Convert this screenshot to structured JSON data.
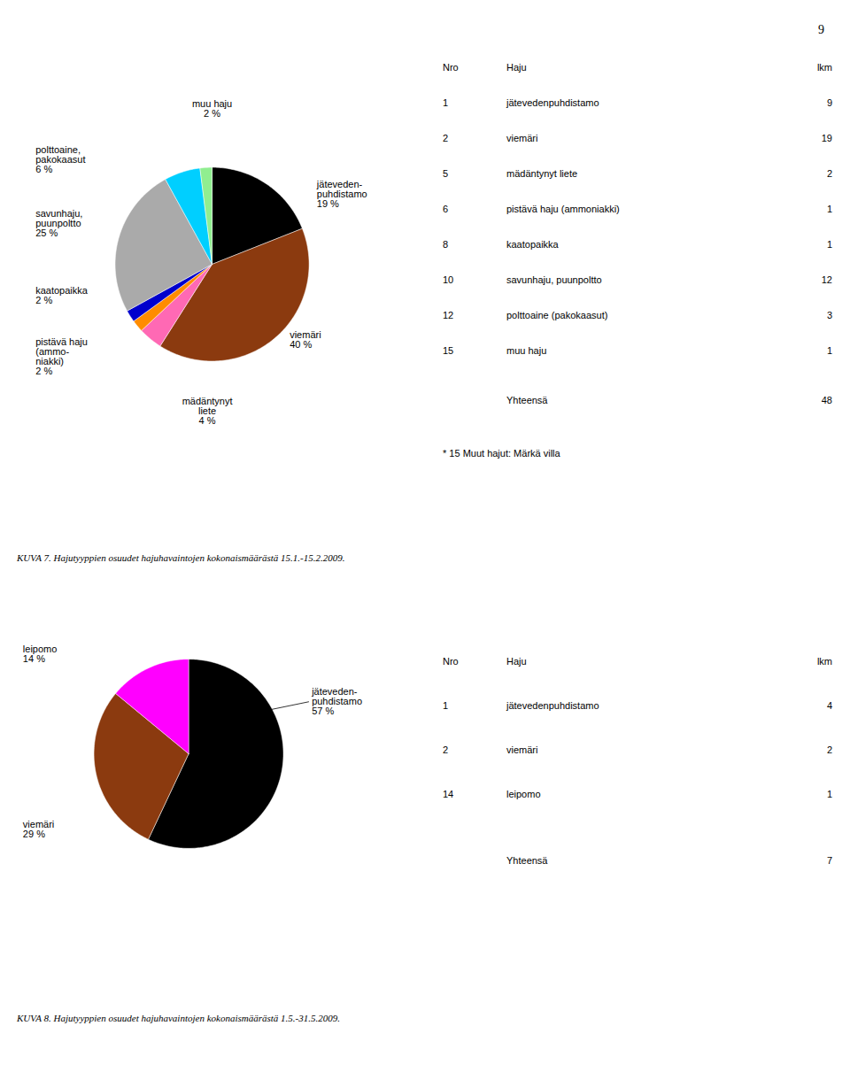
{
  "page_number": "9",
  "chart_data": [
    {
      "type": "pie",
      "title": "KUVA 7. Hajutyyppien osuudet hajuhavaintojen kokonaismäärästä 15.1.-15.2.2009.",
      "categories": [
        "jäteveden-\npuhdistamo",
        "viemäri",
        "mädäntynyt\nliete",
        "pistävä haju\n(ammo-\nniakki)",
        "kaatopaikka",
        "savunhaju,\npuunpoltto",
        "polttoaine,\npakokaasut",
        "muu haju"
      ],
      "values": [
        19,
        40,
        4,
        2,
        2,
        25,
        6,
        2
      ],
      "value_labels": [
        "19 %",
        "40 %",
        "4 %",
        "2 %",
        "2 %",
        "25 %",
        "6 %",
        "2 %"
      ],
      "data_labels": true,
      "colors": [
        "#000000",
        "#8B3A0F",
        "#FF69B4",
        "#FF8C00",
        "#0000CD",
        "#AAAAAA",
        "#00CFFF",
        "#90EE90"
      ],
      "table": {
        "headers": [
          "Nro",
          "Haju",
          "lkm"
        ],
        "rows": [
          [
            "1",
            "jätevedenpuhdistamo",
            "9"
          ],
          [
            "2",
            "viemäri",
            "19"
          ],
          [
            "5",
            "mädäntynyt liete",
            "2"
          ],
          [
            "6",
            "pistävä haju (ammoniakki)",
            "1"
          ],
          [
            "8",
            "kaatopaikka",
            "1"
          ],
          [
            "10",
            "savunhaju, puunpoltto",
            "12"
          ],
          [
            "12",
            "polttoaine (pakokaasut)",
            "3"
          ],
          [
            "15",
            "muu haju",
            "1"
          ]
        ],
        "total_label": "Yhteensä",
        "total_value": "48",
        "footnote": "* 15 Muut hajut: Märkä villa"
      }
    },
    {
      "type": "pie",
      "title": "KUVA 8. Hajutyyppien osuudet hajuhavaintojen kokonaismäärästä 1.5.-31.5.2009.",
      "categories": [
        "jäteveden-\npuhdistamo",
        "viemäri",
        "leipomo"
      ],
      "values": [
        57,
        29,
        14
      ],
      "value_labels": [
        "57 %",
        "29 %",
        "14 %"
      ],
      "data_labels": true,
      "colors": [
        "#000000",
        "#8B3A0F",
        "#FF00FF"
      ],
      "table": {
        "headers": [
          "Nro",
          "Haju",
          "lkm"
        ],
        "rows": [
          [
            "1",
            "jätevedenpuhdistamo",
            "4"
          ],
          [
            "2",
            "viemäri",
            "2"
          ],
          [
            "14",
            "leipomo",
            "1"
          ]
        ],
        "total_label": "Yhteensä",
        "total_value": "7"
      }
    }
  ]
}
